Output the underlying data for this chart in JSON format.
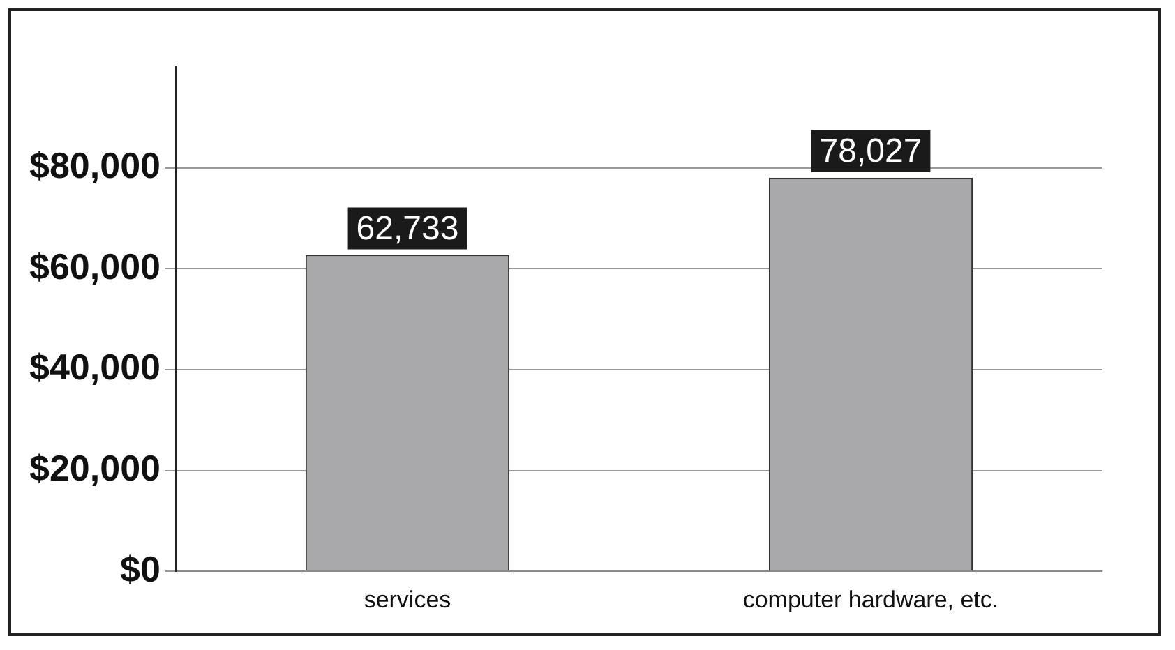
{
  "chart_data": {
    "type": "bar",
    "categories": [
      "services",
      "computer hardware, etc."
    ],
    "values": [
      62733,
      78027
    ],
    "color": "#a9a9ab",
    "value_labels": [
      "62,733",
      "78,027"
    ],
    "ylim": [
      0,
      100000
    ],
    "yticks": [
      {
        "value": 0,
        "label": "$0"
      },
      {
        "value": 20000,
        "label": "$20,000"
      },
      {
        "value": 40000,
        "label": "$40,000"
      },
      {
        "value": 60000,
        "label": "$60,000"
      },
      {
        "value": 80000,
        "label": "$80,000"
      }
    ],
    "grid": "y",
    "legend": false
  }
}
